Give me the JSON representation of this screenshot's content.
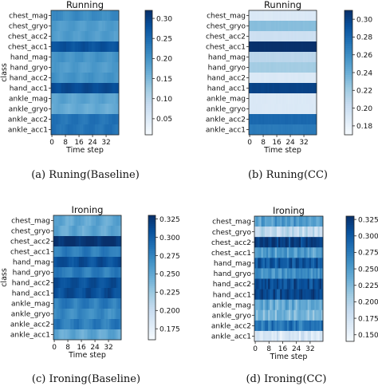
{
  "chart_data": [
    {
      "type": "heatmap",
      "title": "Running",
      "caption": "(a)  Runing(Baseline)",
      "xlabel": "Time step",
      "ylabel": "class",
      "yticks": [
        "chest_mag",
        "chest_gryo",
        "chest_acc2",
        "chest_acc1",
        "hand_mag",
        "hand_gryo",
        "hand_acc2",
        "hand_acc1",
        "ankle_mag",
        "ankle_gryo",
        "ankle_acc2",
        "ankle_acc1"
      ],
      "xticks": [
        0,
        8,
        16,
        24,
        32
      ],
      "n_steps": 40,
      "colorbar_ticks": [
        0.05,
        0.1,
        0.15,
        0.2,
        0.25,
        0.3
      ],
      "clim": [
        0.01,
        0.32
      ],
      "row_values": [
        0.21,
        0.19,
        0.19,
        0.28,
        0.2,
        0.19,
        0.2,
        0.29,
        0.18,
        0.17,
        0.24,
        0.24
      ],
      "column_pattern": "smooth"
    },
    {
      "type": "heatmap",
      "title": "Running",
      "caption": "(b)  Runing(CC)",
      "xlabel": "Time step",
      "ylabel": "",
      "yticks": [
        "chest_mag",
        "chest_gryo",
        "chest_acc2",
        "chest_acc1",
        "hand_mag",
        "hand_gryo",
        "hand_acc2",
        "hand_acc1",
        "ankle_mag",
        "ankle_gryo",
        "ankle_acc2",
        "ankle_acc1"
      ],
      "xticks": [
        0,
        8,
        16,
        24,
        32
      ],
      "n_steps": 40,
      "colorbar_ticks": [
        0.18,
        0.2,
        0.22,
        0.24,
        0.26,
        0.28,
        0.3
      ],
      "clim": [
        0.17,
        0.31
      ],
      "row_values": [
        0.19,
        0.23,
        0.2,
        0.31,
        0.21,
        0.22,
        0.19,
        0.3,
        0.19,
        0.19,
        0.28,
        0.27
      ],
      "column_pattern": "flat"
    },
    {
      "type": "heatmap",
      "title": "Ironing",
      "caption": "(c)  Ironing(Baseline)",
      "xlabel": "Time step",
      "ylabel": "class",
      "yticks": [
        "chest_mag",
        "chest_gryo",
        "chest_acc2",
        "chest_acc1",
        "hand_mag",
        "hand_gryo",
        "hand_acc2",
        "hand_acc1",
        "ankle_mag",
        "ankle_gryo",
        "ankle_acc2",
        "ankle_acc1"
      ],
      "xticks": [
        0,
        8,
        16,
        24,
        32
      ],
      "n_steps": 40,
      "colorbar_ticks": [
        0.175,
        0.2,
        0.225,
        0.25,
        0.275,
        0.3,
        0.325
      ],
      "clim": [
        0.16,
        0.33
      ],
      "row_values": [
        0.25,
        0.25,
        0.33,
        0.28,
        0.31,
        0.28,
        0.31,
        0.31,
        0.28,
        0.27,
        0.28,
        0.25
      ],
      "column_pattern": "smooth"
    },
    {
      "type": "heatmap",
      "title": "Ironing",
      "caption": "(d)  Ironing(CC)",
      "xlabel": "Time step",
      "ylabel": "",
      "yticks": [
        "chest_mag",
        "chest_gryo",
        "chest_acc2",
        "chest_acc1",
        "hand_mag",
        "hand_gryo",
        "hand_acc2",
        "hand_acc1",
        "ankle_mag",
        "ankle_gryo",
        "ankle_acc2",
        "ankle_acc1"
      ],
      "xticks": [
        0,
        8,
        16,
        24,
        32
      ],
      "n_steps": 40,
      "colorbar_ticks": [
        0.15,
        0.175,
        0.2,
        0.225,
        0.25,
        0.275,
        0.3,
        0.325
      ],
      "clim": [
        0.14,
        0.33
      ],
      "row_values": [
        0.25,
        0.19,
        0.32,
        0.25,
        0.3,
        0.26,
        0.31,
        0.31,
        0.24,
        0.23,
        0.28,
        0.17
      ],
      "column_pattern": "striped"
    }
  ]
}
